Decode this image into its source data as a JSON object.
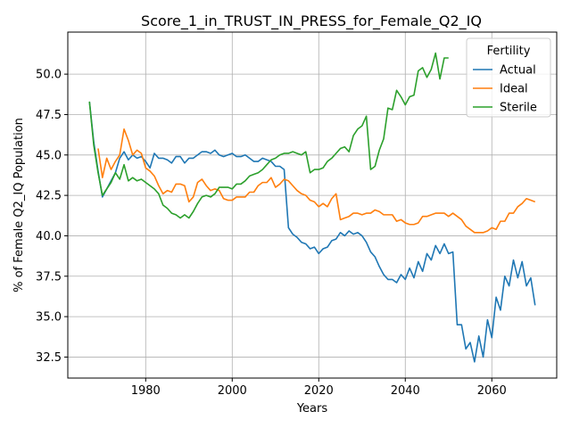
{
  "chart_data": {
    "type": "line",
    "title": "Score_1_in_TRUST_IN_PRESS_for_Female_Q2_IQ",
    "xlabel": "Years",
    "ylabel": "% of Female Q2_IQ Population",
    "xlim": [
      1962,
      2075
    ],
    "ylim": [
      31.2,
      52.6
    ],
    "xticks": [
      1980,
      2000,
      2020,
      2040,
      2060
    ],
    "yticks": [
      32.5,
      35.0,
      37.5,
      40.0,
      42.5,
      45.0,
      47.5,
      50.0
    ],
    "xtick_labels": [
      "1980",
      "2000",
      "2020",
      "2040",
      "2060"
    ],
    "ytick_labels": [
      "32.5",
      "35.0",
      "37.5",
      "40.0",
      "42.5",
      "45.0",
      "47.5",
      "50.0"
    ],
    "grid": true,
    "legend": {
      "title": "Fertility",
      "placement": "top-right"
    },
    "series": [
      {
        "name": "Actual",
        "color": "#1f77b4",
        "x": [
          1967,
          1968,
          1969,
          1970,
          1971,
          1972,
          1973,
          1974,
          1975,
          1976,
          1977,
          1978,
          1979,
          1980,
          1981,
          1982,
          1983,
          1984,
          1985,
          1986,
          1987,
          1988,
          1989,
          1990,
          1991,
          1992,
          1993,
          1994,
          1995,
          1996,
          1997,
          1998,
          1999,
          2000,
          2001,
          2002,
          2003,
          2004,
          2005,
          2006,
          2007,
          2008,
          2009,
          2010,
          2011,
          2012,
          2013,
          2014,
          2015,
          2016,
          2017,
          2018,
          2019,
          2020,
          2021,
          2022,
          2023,
          2024,
          2025,
          2026,
          2027,
          2028,
          2029,
          2030,
          2031,
          2032,
          2033,
          2034,
          2035,
          2036,
          2037,
          2038,
          2039,
          2040,
          2041,
          2042,
          2043,
          2044,
          2045,
          2046,
          2047,
          2048,
          2049,
          2050,
          2051,
          2052,
          2053,
          2054,
          2055,
          2056,
          2057,
          2058,
          2059,
          2060,
          2061,
          2062,
          2063,
          2064,
          2065,
          2066,
          2067,
          2068,
          2069,
          2070
        ],
        "y": [
          48.3,
          45.8,
          44.0,
          42.4,
          42.9,
          43.4,
          43.9,
          44.8,
          45.2,
          44.7,
          45.0,
          44.8,
          44.9,
          44.6,
          44.2,
          45.1,
          44.8,
          44.8,
          44.7,
          44.5,
          44.9,
          44.9,
          44.5,
          44.8,
          44.8,
          45.0,
          45.2,
          45.2,
          45.1,
          45.3,
          45.0,
          44.9,
          45.0,
          45.1,
          44.9,
          44.9,
          45.0,
          44.8,
          44.6,
          44.6,
          44.8,
          44.7,
          44.6,
          44.3,
          44.3,
          44.1,
          40.5,
          40.1,
          39.9,
          39.6,
          39.5,
          39.2,
          39.3,
          38.9,
          39.2,
          39.3,
          39.7,
          39.8,
          40.2,
          40.0,
          40.3,
          40.1,
          40.2,
          40.0,
          39.6,
          39.0,
          38.7,
          38.1,
          37.6,
          37.3,
          37.3,
          37.1,
          37.6,
          37.3,
          38.0,
          37.4,
          38.4,
          37.8,
          38.9,
          38.5,
          39.4,
          38.9,
          39.5,
          38.9,
          39.0,
          34.5,
          34.5,
          33.0,
          33.4,
          32.2,
          33.8,
          32.5,
          34.8,
          33.7,
          36.2,
          35.4,
          37.5,
          36.9,
          38.5,
          37.4,
          38.4,
          36.9,
          37.4,
          35.7
        ]
      },
      {
        "name": "Ideal",
        "color": "#ff7f0e",
        "x": [
          1969,
          1970,
          1971,
          1972,
          1973,
          1974,
          1975,
          1976,
          1977,
          1978,
          1979,
          1980,
          1981,
          1982,
          1983,
          1984,
          1985,
          1986,
          1987,
          1988,
          1989,
          1990,
          1991,
          1992,
          1993,
          1994,
          1995,
          1996,
          1997,
          1998,
          1999,
          2000,
          2001,
          2002,
          2003,
          2004,
          2005,
          2006,
          2007,
          2008,
          2009,
          2010,
          2011,
          2012,
          2013,
          2014,
          2015,
          2016,
          2017,
          2018,
          2019,
          2020,
          2021,
          2022,
          2023,
          2024,
          2025,
          2026,
          2027,
          2028,
          2029,
          2030,
          2031,
          2032,
          2033,
          2034,
          2035,
          2036,
          2037,
          2038,
          2039,
          2040,
          2041,
          2042,
          2043,
          2044,
          2045,
          2046,
          2047,
          2048,
          2049,
          2050,
          2051,
          2052,
          2053,
          2054,
          2055,
          2056,
          2057,
          2058,
          2059,
          2060,
          2061,
          2062,
          2063,
          2064,
          2065,
          2066,
          2067,
          2068,
          2069,
          2070
        ],
        "y": [
          45.4,
          43.6,
          44.8,
          44.1,
          44.6,
          45.0,
          46.6,
          45.9,
          45.0,
          45.3,
          45.1,
          44.2,
          44.0,
          43.7,
          43.1,
          42.6,
          42.8,
          42.7,
          43.2,
          43.2,
          43.1,
          42.1,
          42.4,
          43.3,
          43.5,
          43.1,
          42.8,
          42.9,
          42.8,
          42.3,
          42.2,
          42.2,
          42.4,
          42.4,
          42.4,
          42.7,
          42.7,
          43.1,
          43.3,
          43.3,
          43.6,
          43.0,
          43.2,
          43.5,
          43.4,
          43.1,
          42.8,
          42.6,
          42.5,
          42.2,
          42.1,
          41.8,
          42.0,
          41.8,
          42.3,
          42.6,
          41.0,
          41.1,
          41.2,
          41.4,
          41.4,
          41.3,
          41.4,
          41.4,
          41.6,
          41.5,
          41.3,
          41.3,
          41.3,
          40.9,
          41.0,
          40.8,
          40.7,
          40.7,
          40.8,
          41.2,
          41.2,
          41.3,
          41.4,
          41.4,
          41.4,
          41.2,
          41.4,
          41.2,
          41.0,
          40.6,
          40.4,
          40.2,
          40.2,
          40.2,
          40.3,
          40.5,
          40.4,
          40.9,
          40.9,
          41.4,
          41.4,
          41.8,
          42.0,
          42.3,
          42.2,
          42.1
        ]
      },
      {
        "name": "Sterile",
        "color": "#2ca02c",
        "x": [
          1967,
          1968,
          1969,
          1970,
          1971,
          1972,
          1973,
          1974,
          1975,
          1976,
          1977,
          1978,
          1979,
          1980,
          1981,
          1982,
          1983,
          1984,
          1985,
          1986,
          1987,
          1988,
          1989,
          1990,
          1991,
          1992,
          1993,
          1994,
          1995,
          1996,
          1997,
          1998,
          1999,
          2000,
          2001,
          2002,
          2003,
          2004,
          2005,
          2006,
          2007,
          2008,
          2009,
          2010,
          2011,
          2012,
          2013,
          2014,
          2015,
          2016,
          2017,
          2018,
          2019,
          2020,
          2021,
          2022,
          2023,
          2024,
          2025,
          2026,
          2027,
          2028,
          2029,
          2030,
          2031,
          2032,
          2033,
          2034,
          2035,
          2036,
          2037,
          2038,
          2039,
          2040,
          2041,
          2042,
          2043,
          2044,
          2045,
          2046,
          2047,
          2048,
          2049,
          2050
        ],
        "y": [
          48.3,
          45.6,
          43.9,
          42.5,
          42.9,
          43.3,
          43.9,
          43.5,
          44.4,
          43.4,
          43.6,
          43.4,
          43.5,
          43.3,
          43.1,
          42.9,
          42.6,
          41.9,
          41.7,
          41.4,
          41.3,
          41.1,
          41.3,
          41.1,
          41.5,
          42.0,
          42.4,
          42.5,
          42.4,
          42.6,
          43.0,
          43.0,
          43.0,
          42.9,
          43.2,
          43.2,
          43.4,
          43.7,
          43.8,
          43.9,
          44.1,
          44.4,
          44.7,
          44.8,
          45.0,
          45.1,
          45.1,
          45.2,
          45.1,
          45.0,
          45.2,
          43.9,
          44.1,
          44.1,
          44.2,
          44.6,
          44.8,
          45.1,
          45.4,
          45.5,
          45.2,
          46.2,
          46.6,
          46.8,
          47.4,
          44.1,
          44.3,
          45.3,
          46.0,
          47.9,
          47.8,
          49.0,
          48.6,
          48.1,
          48.6,
          48.7,
          50.2,
          50.4,
          49.8,
          50.3,
          51.3,
          49.7,
          51.0,
          51.0
        ]
      }
    ]
  }
}
